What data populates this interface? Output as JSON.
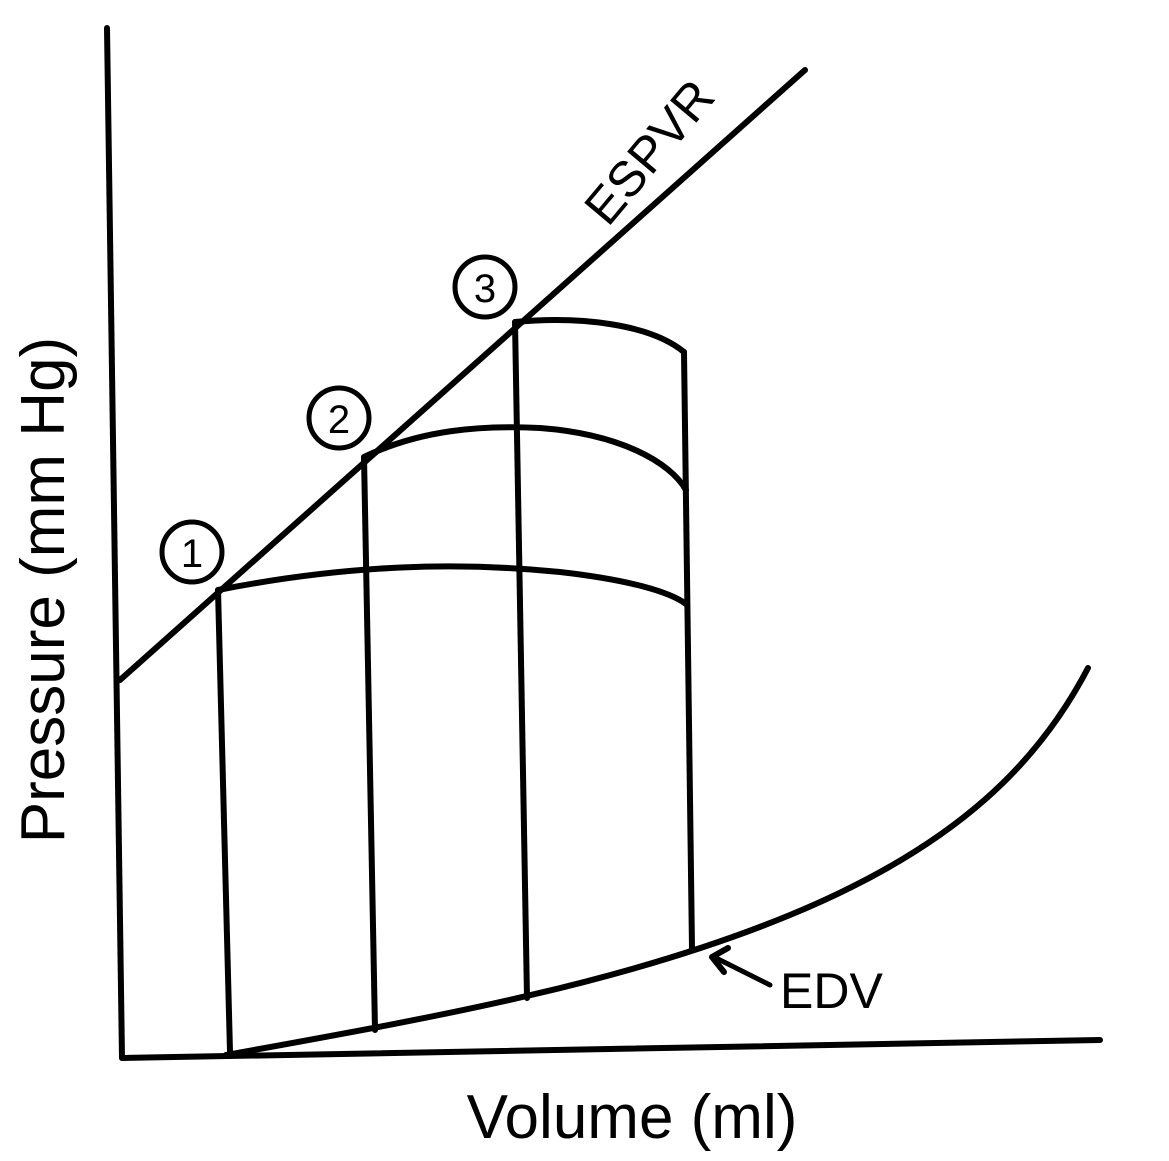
{
  "axes": {
    "x_label": "Volume (ml)",
    "y_label": "Pressure (mm Hg)"
  },
  "curves": {
    "espvr_label": "ESPVR",
    "edv_label": "EDV"
  },
  "markers": [
    {
      "number": "1"
    },
    {
      "number": "2"
    },
    {
      "number": "3"
    }
  ],
  "colors": {
    "ink": "#000000",
    "background": "#ffffff"
  }
}
